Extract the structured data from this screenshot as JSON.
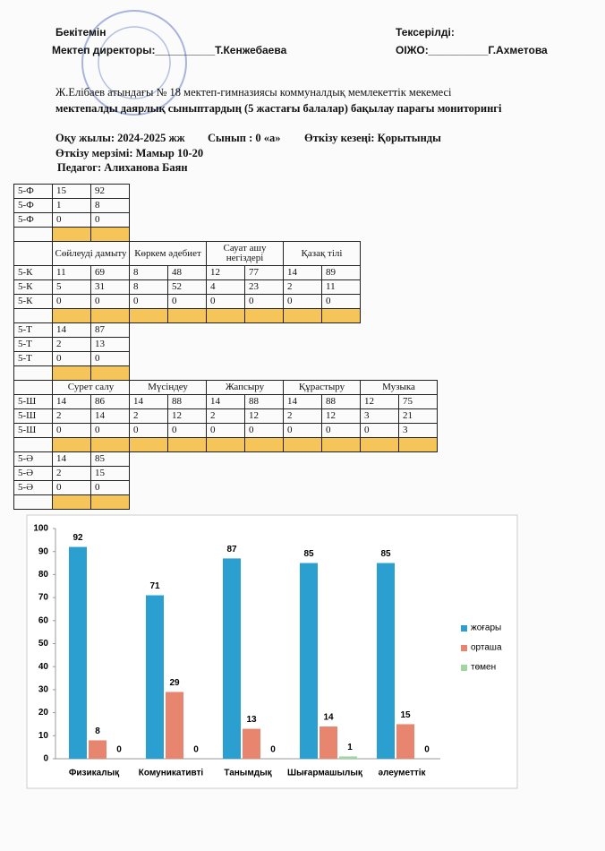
{
  "header": {
    "approved": "Бекітемін",
    "director": "Мектеп директоры:__________Т.Кенжебаева",
    "checked": "Тексерілді:",
    "ojo": "ОІЖО:__________Г.Ахметова"
  },
  "title": [
    "Ж.Елібаев атындағы № 18 мектеп-гимназиясы коммуналдық мемлекеттік мекемесі",
    "мектепалды даярлық сыныптардың (5 жастағы балалар)  бақылау парағы  мониторингі"
  ],
  "info": {
    "year": "Оқу жылы: 2024-2025 жж",
    "class": "Сынып : 0 «а»",
    "period": "Өткізу кезеңі: Қорытынды",
    "dates": "Өткізу мерзімі: Мамыр 10-20",
    "teacher": "Педагог: Алиханова Баян"
  },
  "tables": [
    {
      "rows": [
        [
          "5-Ф",
          "15",
          "92"
        ],
        [
          "5-Ф",
          "1",
          "8"
        ],
        [
          "5-Ф",
          "0",
          "0"
        ]
      ]
    },
    {
      "headers": [
        "Сөйлеуді дамыту",
        "Көркем әдебиет",
        "Сауат ашу негіздері",
        "Қазақ тілі"
      ],
      "rows": [
        [
          "5-К",
          "11",
          "69",
          "8",
          "48",
          "12",
          "77",
          "14",
          "89"
        ],
        [
          "5-К",
          "5",
          "31",
          "8",
          "52",
          "4",
          "23",
          "2",
          "11"
        ],
        [
          "5-К",
          "0",
          "0",
          "0",
          "0",
          "0",
          "0",
          "0",
          "0"
        ]
      ]
    },
    {
      "rows": [
        [
          "5-Т",
          "14",
          "87"
        ],
        [
          "5-Т",
          "2",
          "13"
        ],
        [
          "5-Т",
          "0",
          "0"
        ]
      ]
    },
    {
      "headers": [
        "Сурет салу",
        "Мүсіндеу",
        "Жапсыру",
        "Құрастыру",
        "Музыка"
      ],
      "rows": [
        [
          "5-Ш",
          "14",
          "86",
          "14",
          "88",
          "14",
          "88",
          "14",
          "88",
          "12",
          "75"
        ],
        [
          "5-Ш",
          "2",
          "14",
          "2",
          "12",
          "2",
          "12",
          "2",
          "12",
          "3",
          "21"
        ],
        [
          "5-Ш",
          "0",
          "0",
          "0",
          "0",
          "0",
          "0",
          "0",
          "0",
          "0",
          "3"
        ]
      ]
    },
    {
      "rows": [
        [
          "5-Ә",
          "14",
          "85"
        ],
        [
          "5-Ә",
          "2",
          "15"
        ],
        [
          "5-Ә",
          "0",
          "0"
        ]
      ]
    }
  ],
  "chart_data": {
    "type": "bar",
    "categories": [
      "Физикалық",
      "Комуникативті",
      "Танымдық",
      "Шығармашылық",
      "әлеуметтік"
    ],
    "series": [
      {
        "name": "жоғары",
        "color": "#2a9fd0",
        "values": [
          92,
          71,
          87,
          85,
          85
        ]
      },
      {
        "name": "орташа",
        "color": "#e8856f",
        "values": [
          8,
          29,
          13,
          14,
          15
        ]
      },
      {
        "name": "төмен",
        "color": "#9fd6a2",
        "values": [
          0,
          0,
          0,
          1,
          0
        ]
      }
    ],
    "ylim": [
      0,
      100
    ],
    "yticks": [
      0,
      10,
      20,
      30,
      40,
      50,
      60,
      70,
      80,
      90,
      100
    ],
    "legend": "right"
  }
}
